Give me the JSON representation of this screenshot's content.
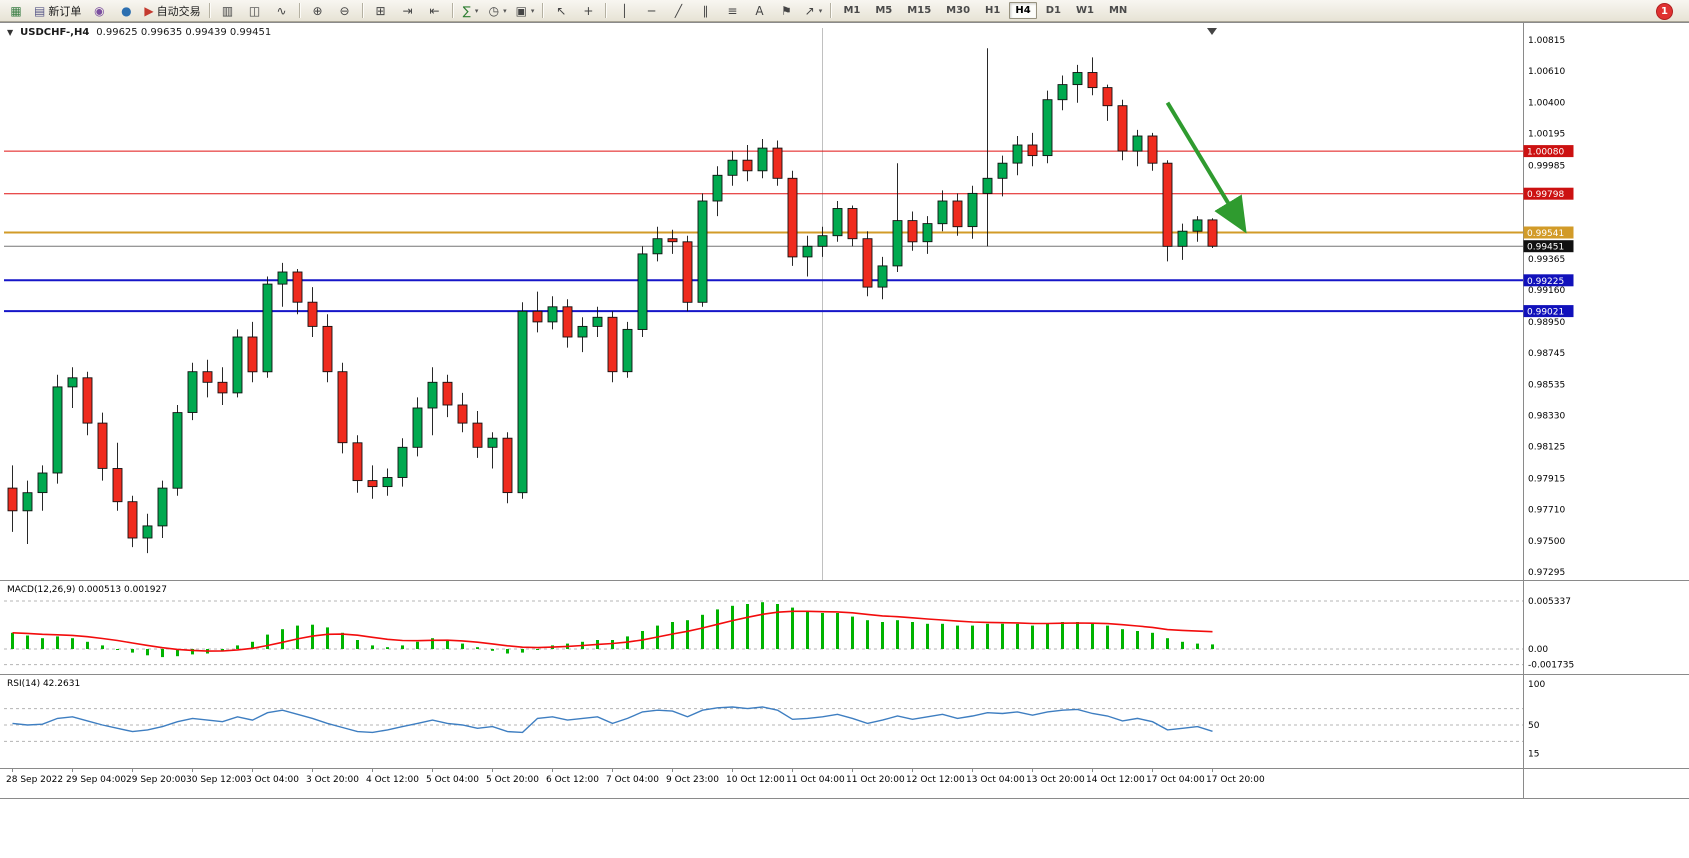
{
  "toolbar": {
    "badge": "1",
    "active_timeframe": "H4",
    "timeframes": [
      "M1",
      "M5",
      "M15",
      "M30",
      "H1",
      "H4",
      "D1",
      "W1",
      "MN"
    ],
    "items": [
      {
        "name": "new-chart",
        "glyph": "▦",
        "color": "#3a7d44"
      },
      {
        "name": "new-order",
        "glyph": "▤",
        "color": "#5a5a8a",
        "label": "新订单"
      },
      {
        "name": "charts-profile",
        "glyph": "◉",
        "color": "#7b4fa0"
      },
      {
        "name": "market-watch",
        "glyph": "●",
        "color": "#2c6fb0"
      },
      {
        "name": "auto-trading",
        "glyph": "▶",
        "color": "#c43a2f",
        "label": "自动交易"
      },
      {
        "type": "sep"
      },
      {
        "name": "bar-chart-mode",
        "glyph": "▥",
        "color": "#444"
      },
      {
        "name": "candlestick-mode",
        "glyph": "◫",
        "color": "#444"
      },
      {
        "name": "line-chart-mode",
        "glyph": "∿",
        "color": "#444"
      },
      {
        "type": "sep"
      },
      {
        "name": "zoom-in",
        "glyph": "⊕",
        "color": "#444"
      },
      {
        "name": "zoom-out",
        "glyph": "⊖",
        "color": "#444"
      },
      {
        "type": "sep"
      },
      {
        "name": "tile-windows",
        "glyph": "⊞",
        "color": "#444"
      },
      {
        "name": "auto-scroll",
        "glyph": "⇥",
        "color": "#444"
      },
      {
        "name": "chart-shift",
        "glyph": "⇤",
        "color": "#444"
      },
      {
        "type": "sep"
      },
      {
        "name": "indicators",
        "glyph": "∑",
        "color": "#2e7d32",
        "caret": true
      },
      {
        "name": "periods",
        "glyph": "◷",
        "color": "#444",
        "caret": true
      },
      {
        "name": "templates",
        "glyph": "▣",
        "color": "#444",
        "caret": true
      },
      {
        "type": "sep"
      },
      {
        "name": "cursor",
        "glyph": "↖",
        "color": "#444"
      },
      {
        "name": "crosshair",
        "glyph": "+",
        "color": "#444"
      },
      {
        "type": "sep"
      },
      {
        "name": "vertical-line",
        "glyph": "│",
        "color": "#444"
      },
      {
        "name": "horizontal-line",
        "glyph": "─",
        "color": "#444"
      },
      {
        "name": "trendline",
        "glyph": "╱",
        "color": "#444"
      },
      {
        "name": "equidistant-channel",
        "glyph": "∥",
        "color": "#444"
      },
      {
        "name": "fibonacci",
        "glyph": "≡",
        "color": "#444"
      },
      {
        "name": "text",
        "glyph": "A",
        "color": "#444"
      },
      {
        "name": "text-label",
        "glyph": "⚑",
        "color": "#444"
      },
      {
        "name": "arrows",
        "glyph": "↗",
        "color": "#444",
        "caret": true
      },
      {
        "type": "sep"
      }
    ]
  },
  "chart": {
    "collapse_icon": "▼",
    "title_symbol": "USDCHF-,H4",
    "title_quotes": "0.99625 0.99635 0.99439 0.99451"
  },
  "price_axis": {
    "ticks": [
      "1.00815",
      "1.00610",
      "1.00400",
      "1.00195",
      "0.99985",
      "0.99365",
      "0.99160",
      "0.98950",
      "0.98745",
      "0.98535",
      "0.98330",
      "0.98125",
      "0.97915",
      "0.97710",
      "0.97500",
      "0.97295"
    ],
    "tags": [
      {
        "text": "1.00080",
        "bg": "#cc1111"
      },
      {
        "text": "0.99798",
        "bg": "#cc1111"
      },
      {
        "text": "0.99541",
        "bg": "#d29b28"
      },
      {
        "text": "0.99451",
        "bg": "#111111"
      },
      {
        "text": "0.99225",
        "bg": "#1111bb"
      },
      {
        "text": "0.99021",
        "bg": "#1111bb"
      }
    ]
  },
  "time_axis": [
    "28 Sep 2022",
    "29 Sep 04:00",
    "29 Sep 20:00",
    "30 Sep 12:00",
    "3 Oct 04:00",
    "3 Oct 20:00",
    "4 Oct 12:00",
    "5 Oct 04:00",
    "5 Oct 20:00",
    "6 Oct 12:00",
    "7 Oct 04:00",
    "9 Oct 23:00",
    "10 Oct 12:00",
    "11 Oct 04:00",
    "11 Oct 20:00",
    "12 Oct 12:00",
    "13 Oct 04:00",
    "13 Oct 20:00",
    "14 Oct 12:00",
    "17 Oct 04:00",
    "17 Oct 20:00"
  ],
  "chart_data": {
    "type": "candlestick",
    "symbol": "USDCHF",
    "period": "H4",
    "current": {
      "open": 0.99625,
      "high": 0.99635,
      "low": 0.99439,
      "close": 0.99451
    },
    "ylim": [
      0.97295,
      1.00815
    ],
    "x_label_step": 4,
    "colors": {
      "bull": "#00a94f",
      "bear": "#ef2b1e",
      "outline": "#111111",
      "macd_hist": "#00b300",
      "macd_signal": "#f20c0c",
      "rsi_line": "#3e7ec1",
      "level_red": "#e01010",
      "level_orange": "#d29b28",
      "level_blue": "#1515c8",
      "arrow_green": "#2f9b2f"
    },
    "levels": [
      {
        "price": 1.0008,
        "color": "#e01010",
        "width": 1
      },
      {
        "price": 0.99798,
        "color": "#e01010",
        "width": 1
      },
      {
        "price": 0.99541,
        "color": "#d29b28",
        "width": 2
      },
      {
        "price": 0.99451,
        "color": "#777777",
        "width": 1
      },
      {
        "price": 0.99225,
        "color": "#1515c8",
        "width": 2
      },
      {
        "price": 0.99021,
        "color": "#1515c8",
        "width": 2
      }
    ],
    "vline_bar": 54,
    "arrow": {
      "from_bar": 77,
      "from_price": 1.004,
      "to_bar": 82,
      "to_price": 0.9958,
      "color": "#2f9b2f"
    },
    "candles": [
      [
        0.9785,
        0.98,
        0.9756,
        0.977
      ],
      [
        0.977,
        0.979,
        0.9748,
        0.9782
      ],
      [
        0.9782,
        0.98,
        0.977,
        0.9795
      ],
      [
        0.9795,
        0.986,
        0.9788,
        0.9852
      ],
      [
        0.9852,
        0.9865,
        0.9838,
        0.9858
      ],
      [
        0.9858,
        0.9862,
        0.982,
        0.9828
      ],
      [
        0.9828,
        0.9835,
        0.979,
        0.9798
      ],
      [
        0.9798,
        0.9815,
        0.977,
        0.9776
      ],
      [
        0.9776,
        0.978,
        0.9746,
        0.9752
      ],
      [
        0.9752,
        0.9768,
        0.9742,
        0.976
      ],
      [
        0.976,
        0.979,
        0.9752,
        0.9785
      ],
      [
        0.9785,
        0.984,
        0.978,
        0.9835
      ],
      [
        0.9835,
        0.9868,
        0.983,
        0.9862
      ],
      [
        0.9862,
        0.987,
        0.9845,
        0.9855
      ],
      [
        0.9855,
        0.9865,
        0.984,
        0.9848
      ],
      [
        0.9848,
        0.989,
        0.9845,
        0.9885
      ],
      [
        0.9885,
        0.9895,
        0.9855,
        0.9862
      ],
      [
        0.9862,
        0.9925,
        0.9858,
        0.992
      ],
      [
        0.992,
        0.9934,
        0.9905,
        0.9928
      ],
      [
        0.9928,
        0.993,
        0.99,
        0.9908
      ],
      [
        0.9908,
        0.9918,
        0.9885,
        0.9892
      ],
      [
        0.9892,
        0.99,
        0.9855,
        0.9862
      ],
      [
        0.9862,
        0.9868,
        0.9808,
        0.9815
      ],
      [
        0.9815,
        0.982,
        0.9782,
        0.979
      ],
      [
        0.979,
        0.98,
        0.9778,
        0.9786
      ],
      [
        0.9786,
        0.9798,
        0.978,
        0.9792
      ],
      [
        0.9792,
        0.9818,
        0.9786,
        0.9812
      ],
      [
        0.9812,
        0.9845,
        0.9806,
        0.9838
      ],
      [
        0.9838,
        0.9865,
        0.982,
        0.9855
      ],
      [
        0.9855,
        0.986,
        0.9832,
        0.984
      ],
      [
        0.984,
        0.9848,
        0.9822,
        0.9828
      ],
      [
        0.9828,
        0.9836,
        0.9805,
        0.9812
      ],
      [
        0.9812,
        0.9822,
        0.9798,
        0.9818
      ],
      [
        0.9818,
        0.9822,
        0.9775,
        0.9782
      ],
      [
        0.9782,
        0.9908,
        0.9778,
        0.9902
      ],
      [
        0.9902,
        0.9915,
        0.9888,
        0.9895
      ],
      [
        0.9895,
        0.9912,
        0.989,
        0.9905
      ],
      [
        0.9905,
        0.991,
        0.9878,
        0.9885
      ],
      [
        0.9885,
        0.9898,
        0.9875,
        0.9892
      ],
      [
        0.9892,
        0.9905,
        0.9885,
        0.9898
      ],
      [
        0.9898,
        0.9902,
        0.9855,
        0.9862
      ],
      [
        0.9862,
        0.9895,
        0.9858,
        0.989
      ],
      [
        0.989,
        0.9945,
        0.9885,
        0.994
      ],
      [
        0.994,
        0.9958,
        0.9935,
        0.995
      ],
      [
        0.995,
        0.9956,
        0.994,
        0.9948
      ],
      [
        0.9948,
        0.9952,
        0.9902,
        0.9908
      ],
      [
        0.9908,
        0.998,
        0.9905,
        0.9975
      ],
      [
        0.9975,
        0.9998,
        0.9965,
        0.9992
      ],
      [
        0.9992,
        1.0008,
        0.9985,
        1.0002
      ],
      [
        1.0002,
        1.0012,
        0.9988,
        0.9995
      ],
      [
        0.9995,
        1.0016,
        0.999,
        1.001
      ],
      [
        1.001,
        1.0015,
        0.9985,
        0.999
      ],
      [
        0.999,
        0.9995,
        0.9932,
        0.9938
      ],
      [
        0.9938,
        0.9952,
        0.9925,
        0.9945
      ],
      [
        0.9945,
        0.9958,
        0.9938,
        0.9952
      ],
      [
        0.9952,
        0.9975,
        0.9948,
        0.997
      ],
      [
        0.997,
        0.9972,
        0.9945,
        0.995
      ],
      [
        0.995,
        0.9955,
        0.9912,
        0.9918
      ],
      [
        0.9918,
        0.9938,
        0.991,
        0.9932
      ],
      [
        0.9932,
        1.0,
        0.9928,
        0.9962
      ],
      [
        0.9962,
        0.9968,
        0.9942,
        0.9948
      ],
      [
        0.9948,
        0.9965,
        0.994,
        0.996
      ],
      [
        0.996,
        0.9982,
        0.9955,
        0.9975
      ],
      [
        0.9975,
        0.998,
        0.9952,
        0.9958
      ],
      [
        0.9958,
        0.9985,
        0.995,
        0.998
      ],
      [
        0.998,
        1.0076,
        0.9945,
        0.999
      ],
      [
        0.999,
        1.0005,
        0.9978,
        1.0
      ],
      [
        1.0,
        1.0018,
        0.9992,
        1.0012
      ],
      [
        1.0012,
        1.002,
        0.9998,
        1.0005
      ],
      [
        1.0005,
        1.0048,
        1.0,
        1.0042
      ],
      [
        1.0042,
        1.0058,
        1.0035,
        1.0052
      ],
      [
        1.0052,
        1.0065,
        1.004,
        1.006
      ],
      [
        1.006,
        1.007,
        1.0045,
        1.005
      ],
      [
        1.005,
        1.0052,
        1.0028,
        1.0038
      ],
      [
        1.0038,
        1.0042,
        1.0002,
        1.0008
      ],
      [
        1.0008,
        1.0022,
        0.9998,
        1.0018
      ],
      [
        1.0018,
        1.002,
        0.9995,
        1.0
      ],
      [
        1.0,
        1.0002,
        0.9935,
        0.9945
      ],
      [
        0.9945,
        0.996,
        0.9936,
        0.9955
      ],
      [
        0.9955,
        0.9965,
        0.9948,
        0.99625
      ],
      [
        0.99625,
        0.99635,
        0.99439,
        0.99451
      ]
    ],
    "macd": {
      "title": "MACD(12,26,9)",
      "value_main": "0.000513",
      "value_signal": "0.001927",
      "axis": [
        "0.005337",
        "0.00",
        "-0.001735"
      ],
      "hist": [
        0.0018,
        0.0015,
        0.0012,
        0.0014,
        0.0012,
        0.0008,
        0.0004,
        0.0,
        -0.0004,
        -0.0007,
        -0.0009,
        -0.0008,
        -0.0006,
        -0.0005,
        -0.0002,
        0.0004,
        0.0008,
        0.0016,
        0.0022,
        0.0026,
        0.0027,
        0.0024,
        0.0018,
        0.001,
        0.0004,
        0.0002,
        0.0004,
        0.0008,
        0.0012,
        0.001,
        0.0006,
        0.0002,
        -0.0002,
        -0.0005,
        -0.0004,
        0.0,
        0.0004,
        0.0006,
        0.0008,
        0.001,
        0.001,
        0.0014,
        0.002,
        0.0026,
        0.003,
        0.0032,
        0.0038,
        0.0044,
        0.0048,
        0.005,
        0.0052,
        0.005,
        0.0046,
        0.0042,
        0.004,
        0.004,
        0.0036,
        0.0032,
        0.003,
        0.0032,
        0.003,
        0.0028,
        0.0028,
        0.0026,
        0.0026,
        0.0028,
        0.0028,
        0.0028,
        0.0026,
        0.0028,
        0.003,
        0.003,
        0.0028,
        0.0026,
        0.0022,
        0.002,
        0.0018,
        0.0012,
        0.0008,
        0.0006,
        0.000513
      ],
      "signal": [
        0.0018,
        0.00174,
        0.00163,
        0.00158,
        0.00151,
        0.00137,
        0.00117,
        0.00094,
        0.00067,
        0.0004,
        0.00014,
        -5e-05,
        -0.00016,
        -0.00023,
        -0.00022,
        -0.0001,
        8e-05,
        0.00039,
        0.00075,
        0.00112,
        0.00143,
        0.00163,
        0.00166,
        0.00153,
        0.0013,
        0.00108,
        0.00095,
        0.00092,
        0.00097,
        0.00098,
        0.0009,
        0.00076,
        0.00057,
        0.00036,
        0.0002,
        0.00016,
        0.00021,
        0.00029,
        0.00039,
        0.00051,
        0.00061,
        0.00077,
        0.00101,
        0.00133,
        0.00167,
        0.00197,
        0.00234,
        0.00275,
        0.00316,
        0.00353,
        0.00386,
        0.00409,
        0.00419,
        0.00419,
        0.00415,
        0.00412,
        0.00402,
        0.00385,
        0.00368,
        0.00359,
        0.00347,
        0.00334,
        0.00323,
        0.0031,
        0.003,
        0.00296,
        0.00293,
        0.0029,
        0.00284,
        0.00283,
        0.00287,
        0.00289,
        0.00287,
        0.00282,
        0.0027,
        0.00256,
        0.0024,
        0.00216,
        0.00207,
        0.00199,
        0.001927
      ]
    },
    "rsi": {
      "title": "RSI(14)",
      "value": "42.2631",
      "axis": [
        "100",
        "50",
        "15"
      ],
      "levels": [
        70,
        50,
        30
      ],
      "series": [
        52,
        50,
        51,
        58,
        60,
        55,
        50,
        46,
        42,
        44,
        48,
        54,
        58,
        56,
        54,
        60,
        56,
        65,
        68,
        63,
        58,
        52,
        47,
        42,
        41,
        44,
        48,
        52,
        56,
        52,
        50,
        46,
        48,
        42,
        41,
        58,
        60,
        56,
        58,
        60,
        52,
        58,
        66,
        68,
        67,
        60,
        68,
        71,
        72,
        70,
        72,
        68,
        57,
        58,
        60,
        63,
        58,
        52,
        56,
        61,
        57,
        60,
        63,
        58,
        61,
        65,
        64,
        66,
        62,
        66,
        68,
        69,
        64,
        61,
        55,
        58,
        54,
        44,
        46,
        48,
        42.2631
      ]
    }
  }
}
